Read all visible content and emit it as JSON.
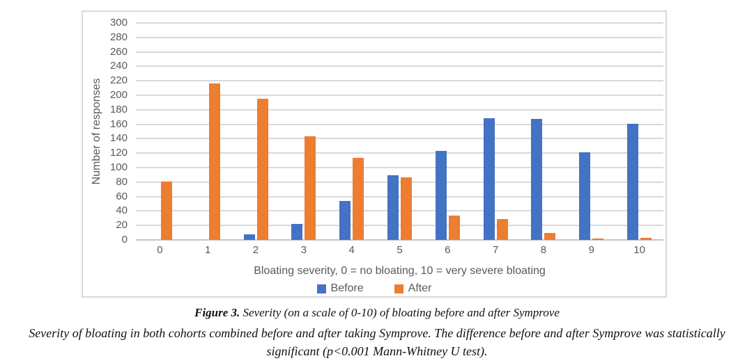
{
  "chart_data": {
    "type": "bar",
    "categories": [
      "0",
      "1",
      "2",
      "3",
      "4",
      "5",
      "6",
      "7",
      "8",
      "9",
      "10"
    ],
    "series": [
      {
        "name": "Before",
        "color": "#4472C4",
        "values": [
          0,
          0,
          8,
          22,
          54,
          89,
          123,
          168,
          167,
          121,
          161
        ]
      },
      {
        "name": "After",
        "color": "#ED7D31",
        "values": [
          81,
          216,
          195,
          143,
          113,
          87,
          34,
          29,
          10,
          2,
          3
        ]
      }
    ],
    "title": "",
    "xlabel": "Bloating severity, 0 = no bloating, 10 = very severe bloating",
    "ylabel": "Number of responses",
    "ylim": [
      0,
      300
    ],
    "ytick_step": 20,
    "grid": true,
    "legend_position": "bottom"
  },
  "caption": {
    "figure_label": "Figure 3.",
    "figure_title": " Severity (on a scale of 0-10) of bloating before and after Symprove",
    "description_lines": [
      "Severity of bloating in both cohorts combined before and after taking Symprove. The difference before and after Symprove was statistically",
      "significant (p<0.001 Mann-Whitney U test)."
    ]
  },
  "colors": {
    "before_bar": "#4472C4",
    "after_bar": "#ED7D31",
    "gridline": "#D9D9D9",
    "axis_text": "#595959",
    "frame_border": "#D9D9D9"
  }
}
